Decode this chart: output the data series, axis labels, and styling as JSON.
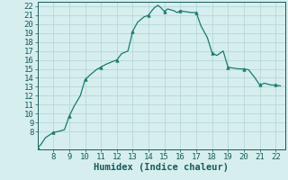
{
  "xlabel": "Humidex (Indice chaleur)",
  "x_values": [
    7,
    7.2,
    7.5,
    8,
    8.3,
    8.7,
    9,
    9.3,
    9.7,
    10,
    10.3,
    10.7,
    11,
    11.3,
    11.7,
    12,
    12.3,
    12.7,
    13,
    13.3,
    13.7,
    14,
    14.2,
    14.4,
    14.6,
    14.8,
    15,
    15.2,
    15.4,
    15.6,
    15.8,
    16,
    16.3,
    16.7,
    17,
    17.3,
    17.7,
    18,
    18.3,
    18.7,
    19,
    19.3,
    19.7,
    20,
    20.3,
    20.7,
    21,
    21.3,
    21.7,
    22,
    22.3
  ],
  "y_values": [
    6.2,
    6.5,
    7.3,
    7.9,
    8.0,
    8.2,
    9.7,
    10.8,
    12.0,
    13.8,
    14.3,
    14.9,
    15.2,
    15.5,
    15.8,
    16.0,
    16.7,
    17.0,
    19.2,
    20.2,
    20.8,
    21.0,
    21.5,
    21.9,
    22.1,
    21.8,
    21.4,
    21.7,
    21.6,
    21.5,
    21.3,
    21.5,
    21.4,
    21.3,
    21.3,
    19.8,
    18.5,
    16.8,
    16.5,
    17.0,
    15.2,
    15.1,
    15.0,
    15.0,
    14.9,
    14.0,
    13.2,
    13.4,
    13.2,
    13.2,
    13.1
  ],
  "marker_x": [
    7,
    8,
    9,
    10,
    11,
    12,
    13,
    14,
    15,
    16,
    17,
    18,
    19,
    20,
    21,
    22
  ],
  "marker_y": [
    6.2,
    7.9,
    9.7,
    13.8,
    15.2,
    16.0,
    19.2,
    21.0,
    21.4,
    21.5,
    21.3,
    16.8,
    15.2,
    15.0,
    13.2,
    13.2
  ],
  "line_color": "#1a7a6e",
  "marker_color": "#1a7a6e",
  "bg_color": "#d6eeee",
  "grid_color": "#b0d4d4",
  "text_color": "#1a5a5a",
  "xlim": [
    7,
    22.6
  ],
  "ylim": [
    6,
    22.5
  ],
  "xticks": [
    8,
    9,
    10,
    11,
    12,
    13,
    14,
    15,
    16,
    17,
    18,
    19,
    20,
    21,
    22
  ],
  "yticks": [
    8,
    9,
    10,
    11,
    12,
    13,
    14,
    15,
    16,
    17,
    18,
    19,
    20,
    21,
    22
  ],
  "xlabel_fontsize": 7.5,
  "tick_fontsize": 6.5
}
